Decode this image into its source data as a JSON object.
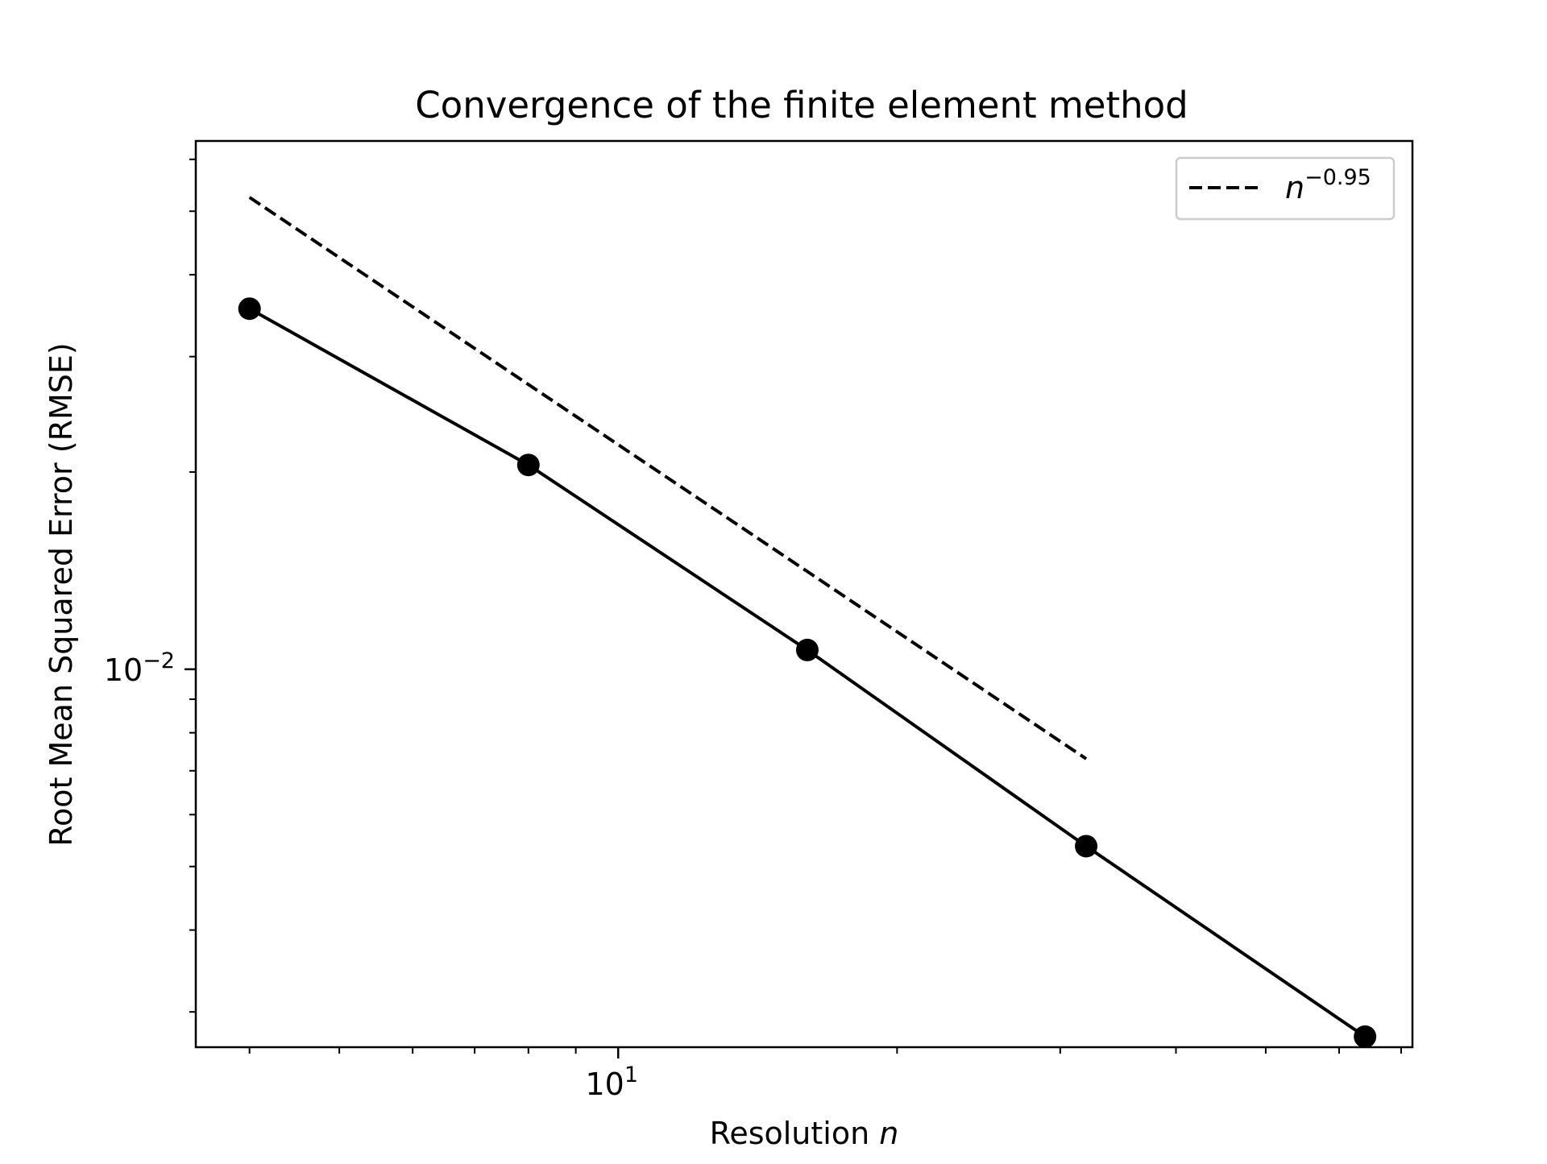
{
  "chart_data": {
    "type": "line",
    "title": "Convergence of the finite element method",
    "xlabel": "Resolution n",
    "xlabel_text": "Resolution ",
    "xlabel_var": "n",
    "ylabel": "Root Mean Squared Error (RMSE)",
    "x_scale": "log",
    "y_scale": "log",
    "xlim": [
      3.5,
      72
    ],
    "ylim": [
      0.00265,
      0.064
    ],
    "x_major_ticks": [
      {
        "value": 10,
        "base": "10",
        "exp": "1"
      }
    ],
    "y_major_ticks": [
      {
        "value": 0.01,
        "base": "10",
        "exp": "−2"
      }
    ],
    "x_minor_ticks": [
      4,
      5,
      6,
      7,
      8,
      9,
      20,
      30,
      40,
      50,
      60,
      70
    ],
    "y_minor_ticks": [
      0.003,
      0.004,
      0.005,
      0.006,
      0.007,
      0.008,
      0.009,
      0.02,
      0.03,
      0.04,
      0.05,
      0.06
    ],
    "grid": false,
    "legend_position": "top-right",
    "series": [
      {
        "name": "",
        "style": "solid",
        "marker": "circle",
        "color": "#000000",
        "x": [
          4,
          8,
          16,
          32,
          64
        ],
        "y": [
          0.0355,
          0.0205,
          0.0107,
          0.00537,
          0.00275
        ]
      },
      {
        "name": "n^{-0.95}",
        "legend_base": "n",
        "legend_exp": "−0.95",
        "style": "dashed",
        "marker": "none",
        "color": "#000000",
        "x": [
          4,
          8,
          16,
          32
        ],
        "y": [
          0.0525,
          0.0272,
          0.0141,
          0.0073
        ]
      }
    ]
  }
}
